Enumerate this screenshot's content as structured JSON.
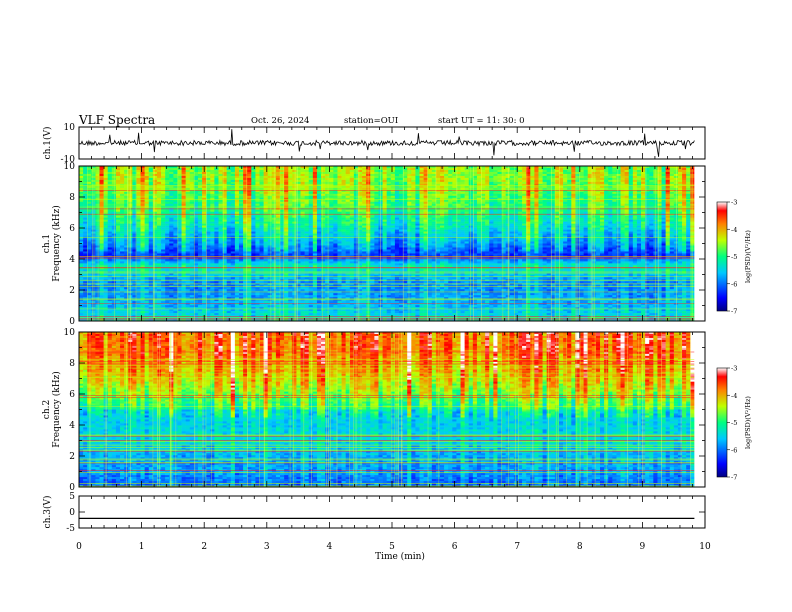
{
  "header": {
    "title": "VLF Spectra",
    "date": "Oct. 26, 2024",
    "station": "station=OUI",
    "start": "start  UT  =   11: 30: 0"
  },
  "chart_data": [
    {
      "type": "line",
      "name_label": "ch.1(V)",
      "ylim": [
        -10,
        10
      ],
      "y_ticks": [
        "10",
        "-10"
      ],
      "baseline": 0,
      "description": "waveform amplitude near 0 with spikes"
    },
    {
      "type": "heatmap",
      "ylabel": "Frequency (kHz)",
      "channel_label": "ch.1",
      "ylim": [
        0,
        10
      ],
      "y_ticks": [
        "0",
        "2",
        "4",
        "6",
        "8",
        "10"
      ],
      "xlim": [
        0,
        9.83
      ],
      "colorbar": {
        "label": "log(PSD)(V²/Hz)",
        "range": [
          -7,
          -3
        ],
        "ticks": [
          "-3",
          "-4",
          "-5",
          "-6",
          "-7"
        ]
      },
      "bands": [
        {
          "f": 9.0,
          "psd": -4.6
        },
        {
          "f": 7.5,
          "psd": -4.9
        },
        {
          "f": 6.2,
          "psd": -5.3
        },
        {
          "f": 5.2,
          "psd": -5.7
        },
        {
          "f": 4.2,
          "psd": -6.3
        },
        {
          "f": 3.5,
          "psd": -5.2
        },
        {
          "f": 2.5,
          "psd": -5.9
        },
        {
          "f": 1.5,
          "psd": -5.8
        },
        {
          "f": 0.5,
          "psd": -5.5
        }
      ]
    },
    {
      "type": "heatmap",
      "ylabel": "Frequency (kHz)",
      "channel_label": "ch.2",
      "ylim": [
        0,
        10
      ],
      "y_ticks": [
        "0",
        "2",
        "4",
        "6",
        "8",
        "10"
      ],
      "xlim": [
        0,
        9.83
      ],
      "colorbar": {
        "label": "log(PSD)(V²/Hz)",
        "range": [
          -7,
          -3
        ],
        "ticks": [
          "-3",
          "-4",
          "-5",
          "-6",
          "-7"
        ]
      },
      "bands": [
        {
          "f": 9.0,
          "psd": -3.9
        },
        {
          "f": 7.5,
          "psd": -4.2
        },
        {
          "f": 6.2,
          "psd": -4.7
        },
        {
          "f": 5.2,
          "psd": -5.2
        },
        {
          "f": 4.2,
          "psd": -5.5
        },
        {
          "f": 3.0,
          "psd": -5.4
        },
        {
          "f": 2.0,
          "psd": -5.7
        },
        {
          "f": 1.0,
          "psd": -5.8
        },
        {
          "f": 0.3,
          "psd": -6.0
        }
      ]
    },
    {
      "type": "line",
      "name_label": "ch.3(V)",
      "ylim": [
        -5,
        5
      ],
      "y_ticks": [
        "5",
        "0",
        "-5"
      ],
      "baseline": -2,
      "description": "flat line"
    }
  ],
  "xaxis": {
    "label": "Time (min)",
    "ticks": [
      "0",
      "1",
      "2",
      "3",
      "4",
      "5",
      "6",
      "7",
      "8",
      "9",
      "10"
    ],
    "range": [
      0,
      10
    ]
  }
}
